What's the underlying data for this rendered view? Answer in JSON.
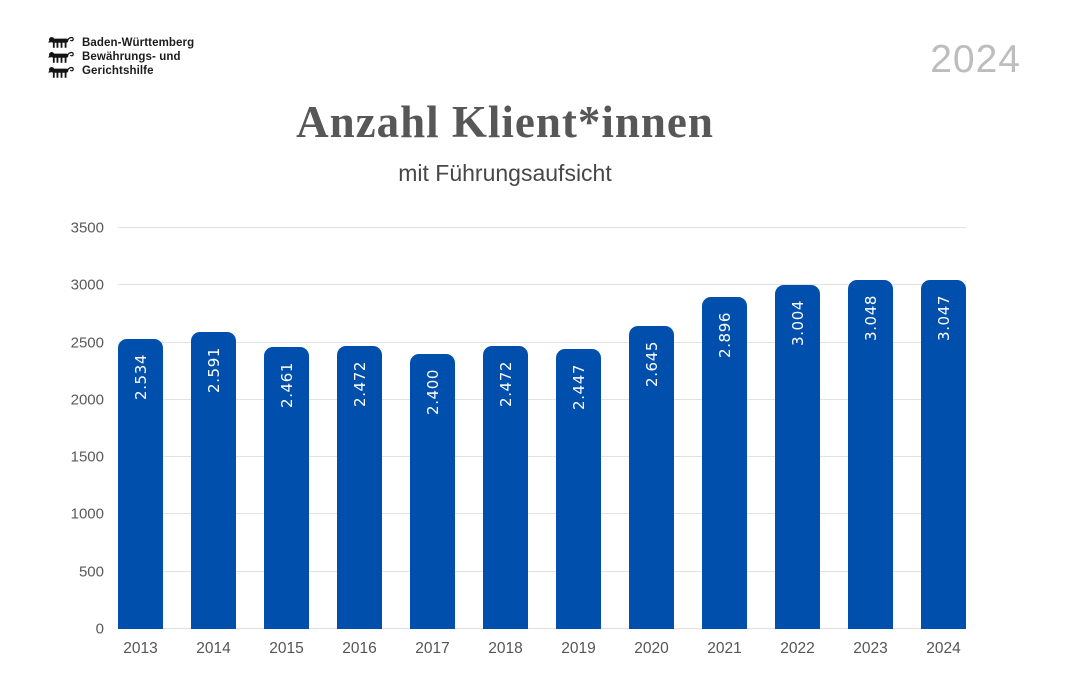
{
  "header": {
    "logo": {
      "icon": "three-lions",
      "lines": [
        "Baden-Württemberg",
        "Bewährungs- und",
        "Gerichtshilfe"
      ]
    },
    "year": "2024",
    "title": "Anzahl Klient*innen",
    "subtitle": "mit Führungsaufsicht"
  },
  "chart_data": {
    "type": "bar",
    "title": "Anzahl Klient*innen",
    "subtitle": "mit Führungsaufsicht",
    "categories": [
      "2013",
      "2014",
      "2015",
      "2016",
      "2017",
      "2018",
      "2019",
      "2020",
      "2021",
      "2022",
      "2023",
      "2024"
    ],
    "values": [
      2534,
      2591,
      2461,
      2472,
      2400,
      2472,
      2447,
      2645,
      2896,
      3004,
      3048,
      3047
    ],
    "value_labels": [
      "2.534",
      "2.591",
      "2.461",
      "2.472",
      "2.400",
      "2.472",
      "2.447",
      "2.645",
      "2.896",
      "3.004",
      "3.048",
      "3.047"
    ],
    "xlabel": "",
    "ylabel": "",
    "ylim": [
      0,
      3500
    ],
    "yticks": [
      0,
      500,
      1000,
      1500,
      2000,
      2500,
      3000,
      3500
    ],
    "grid": true,
    "legend": false,
    "value_label_rotation": -90,
    "bar_color": "#004FAC",
    "value_label_color": "#FFFFFF"
  },
  "colors": {
    "bar": "#004FAC",
    "title": "#575757",
    "subtitle": "#474747",
    "year": "#BDBDBD",
    "axis_text": "#5A5A5A",
    "gridline": "#E2E2E2",
    "background": "#FFFFFF",
    "logo": "#1C1C1C"
  }
}
